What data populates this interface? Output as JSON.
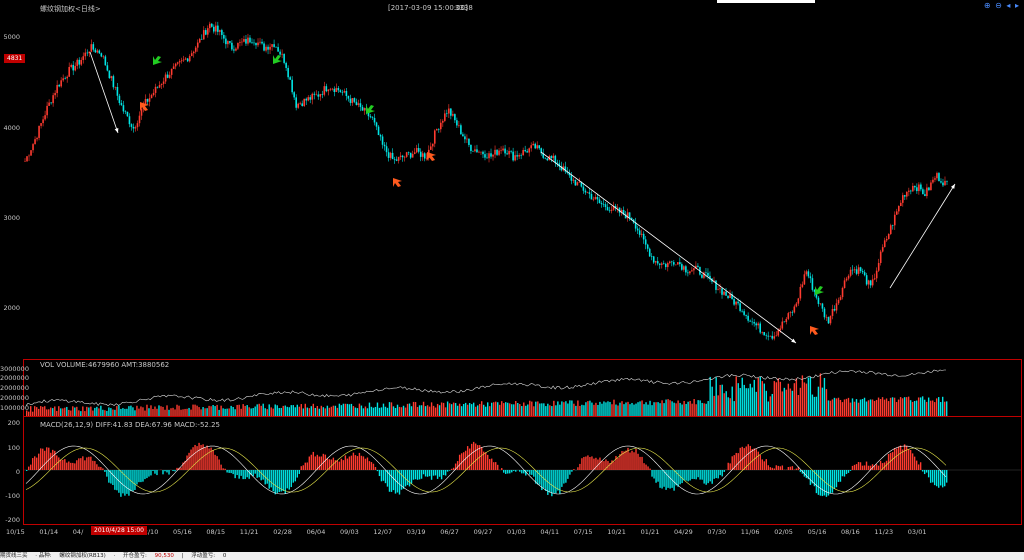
{
  "header": {
    "instrument": "螺纹钢加权<日线>",
    "datetime": "[2017-03-09 15:00:00]",
    "price": "3338",
    "toolbar": [
      "zoom-in-icon",
      "zoom-out-icon",
      "scroll-left-icon",
      "scroll-right-icon"
    ],
    "toolbar_glyphs": [
      "⊕",
      "⊖",
      "◂",
      "▸"
    ]
  },
  "price_axis": {
    "labels": [
      "5000",
      "4000",
      "3000",
      "2000"
    ],
    "current_badge": "4831"
  },
  "volume_panel": {
    "title": "VOL  VOLUME:4679960 AMT:3880562",
    "labels": [
      "3000000",
      "2000000",
      "2000000",
      "2000000",
      "1000000"
    ]
  },
  "macd_panel": {
    "title": "MACD(26,12,9)  DIFF:41.83 DEA:67.96 MACD:-52.25",
    "labels": [
      "200",
      "100",
      "0",
      "-100",
      "-200"
    ]
  },
  "x_axis": {
    "labels": [
      "10/15",
      "01/14",
      "04/",
      "11/04",
      "02/10",
      "05/16",
      "08/15",
      "11/21",
      "02/28",
      "06/04",
      "09/03",
      "12/07",
      "03/19",
      "06/27",
      "09/27",
      "01/03",
      "04/11",
      "07/15",
      "10/21",
      "01/21",
      "04/29",
      "07/30",
      "11/06",
      "02/05",
      "05/16",
      "08/16",
      "11/23",
      "03/01"
    ],
    "cursor_badge": "2010/4/28 15:00"
  },
  "status_bar": {
    "items": [
      "期货线三买",
      "· 品种: ",
      "螺纹钢加权(RB13)",
      "·",
      "开仓盈亏:",
      "90,530",
      "|",
      "浮动盈亏:",
      "0"
    ]
  },
  "colors": {
    "up": "#ff3b30",
    "down": "#00e5e5",
    "dea_line": "#e6e64a",
    "diff_line": "#ffffff",
    "frame": "#c00000",
    "buy_arrow": "#ff5a1e",
    "sell_arrow": "#22cc22"
  },
  "chart_data": {
    "type": "candlestick",
    "title": "螺纹钢加权<日线>",
    "y_range": [
      1650,
      5250
    ],
    "price_path": [
      3650,
      3900,
      4200,
      4450,
      4600,
      4700,
      4850,
      4800,
      4500,
      4200,
      4000,
      4250,
      4400,
      4550,
      4650,
      4750,
      4900,
      5100,
      5000,
      4850,
      4900,
      4950,
      4850,
      4900,
      4700,
      4250,
      4300,
      4350,
      4450,
      4400,
      4300,
      4200,
      4100,
      3800,
      3650,
      3700,
      3750,
      3700,
      4000,
      4200,
      4000,
      3800,
      3750,
      3700,
      3800,
      3700,
      3750,
      3800,
      3700,
      3650,
      3500,
      3400,
      3300,
      3200,
      3150,
      3100,
      3050,
      2800,
      2600,
      2550,
      2600,
      2500,
      2500,
      2400,
      2300,
      2200,
      2100,
      1950,
      1850,
      1800,
      1950,
      2100,
      2500,
      2200,
      1950,
      2200,
      2500,
      2500,
      2300,
      2700,
      3000,
      3300,
      3400,
      3300,
      3500,
      3400
    ],
    "trend_lines": [
      {
        "from": [
          "2009-10",
          4900
        ],
        "to": [
          "2010-02",
          4000
        ]
      },
      {
        "from": [
          "2013-12",
          3750
        ],
        "to": [
          "2015-11",
          1850
        ]
      },
      {
        "from": [
          "2016-07",
          2200
        ],
        "to": [
          "2017-03",
          3250
        ]
      }
    ]
  }
}
